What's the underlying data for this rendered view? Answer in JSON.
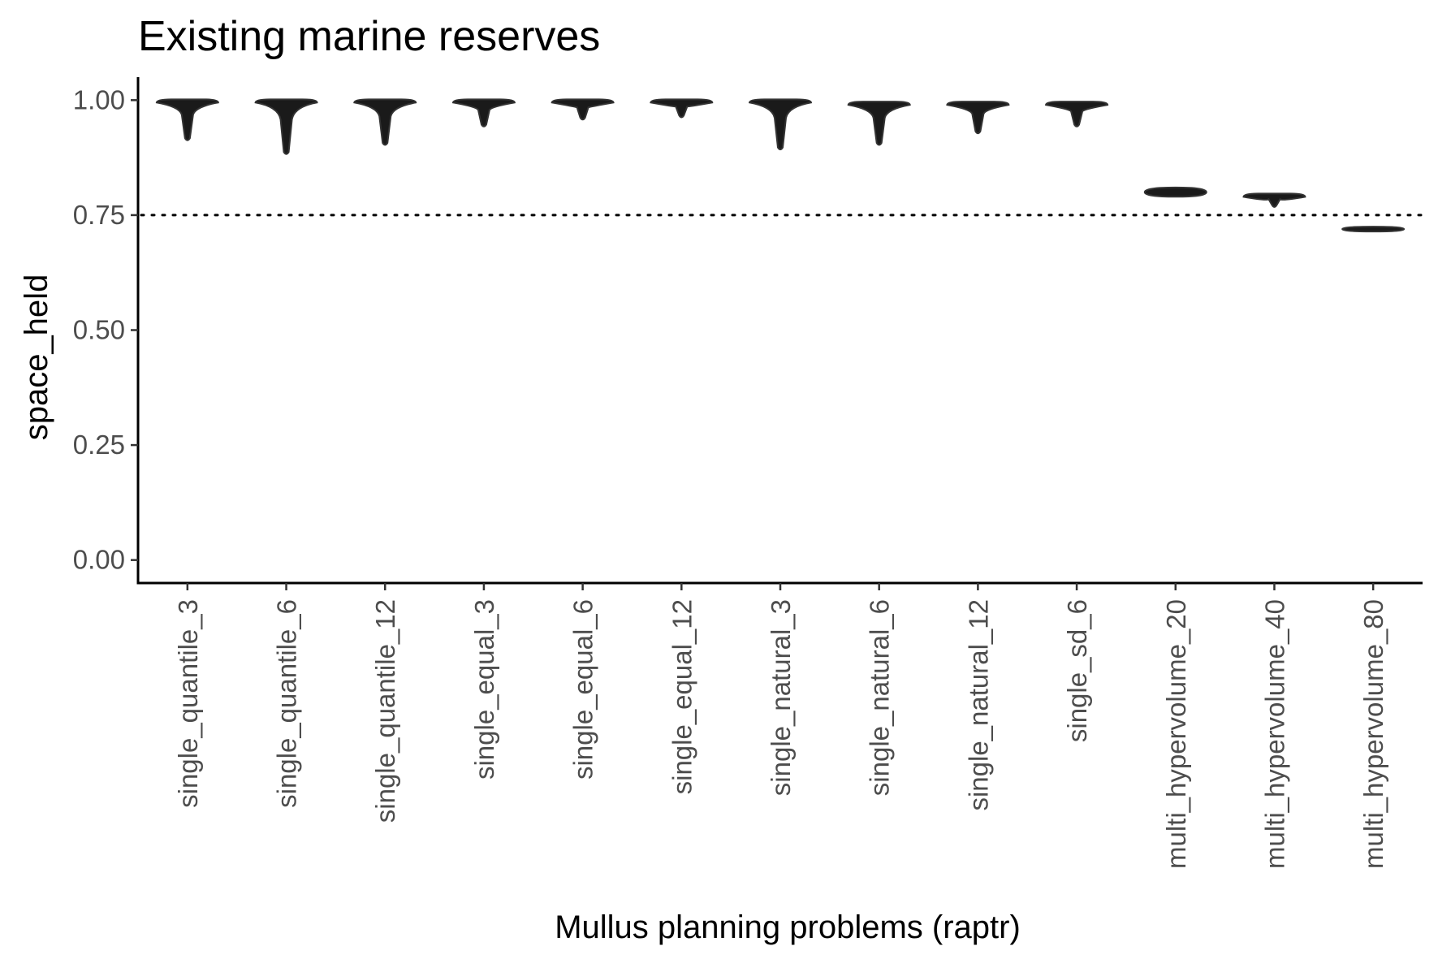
{
  "chart_data": {
    "type": "violin",
    "title": "Existing marine reserves",
    "xlabel": "Mullus planning problems (raptr)",
    "ylabel": "space_held",
    "ylim": [
      -0.05,
      1.05
    ],
    "yticks": [
      {
        "value": 0.0,
        "label": "0.00"
      },
      {
        "value": 0.25,
        "label": "0.25"
      },
      {
        "value": 0.5,
        "label": "0.50"
      },
      {
        "value": 0.75,
        "label": "0.75"
      },
      {
        "value": 1.0,
        "label": "1.00"
      }
    ],
    "reference_line": {
      "value": 0.75,
      "style": "dotted"
    },
    "grid": false,
    "legend": "none",
    "fill_color": "#1a1a1a",
    "categories": [
      "single_quantile_3",
      "single_quantile_6",
      "single_quantile_12",
      "single_equal_3",
      "single_equal_6",
      "single_equal_12",
      "single_natural_3",
      "single_natural_6",
      "single_natural_12",
      "single_sd_6",
      "multi_hypervolume_20",
      "multi_hypervolume_40",
      "multi_hypervolume_80"
    ],
    "series": [
      {
        "category": "single_quantile_3",
        "min": 0.91,
        "max": 1.0
      },
      {
        "category": "single_quantile_6",
        "min": 0.88,
        "max": 1.0
      },
      {
        "category": "single_quantile_12",
        "min": 0.9,
        "max": 1.0
      },
      {
        "category": "single_equal_3",
        "min": 0.94,
        "max": 1.0
      },
      {
        "category": "single_equal_6",
        "min": 0.955,
        "max": 1.0
      },
      {
        "category": "single_equal_12",
        "min": 0.96,
        "max": 1.0
      },
      {
        "category": "single_natural_3",
        "min": 0.89,
        "max": 1.0
      },
      {
        "category": "single_natural_6",
        "min": 0.9,
        "max": 0.995
      },
      {
        "category": "single_natural_12",
        "min": 0.925,
        "max": 0.995
      },
      {
        "category": "single_sd_6",
        "min": 0.94,
        "max": 0.995
      },
      {
        "category": "multi_hypervolume_20",
        "min": 0.79,
        "max": 0.81
      },
      {
        "category": "multi_hypervolume_40",
        "min": 0.765,
        "max": 0.795
      },
      {
        "category": "multi_hypervolume_80",
        "min": 0.715,
        "max": 0.725
      }
    ]
  }
}
